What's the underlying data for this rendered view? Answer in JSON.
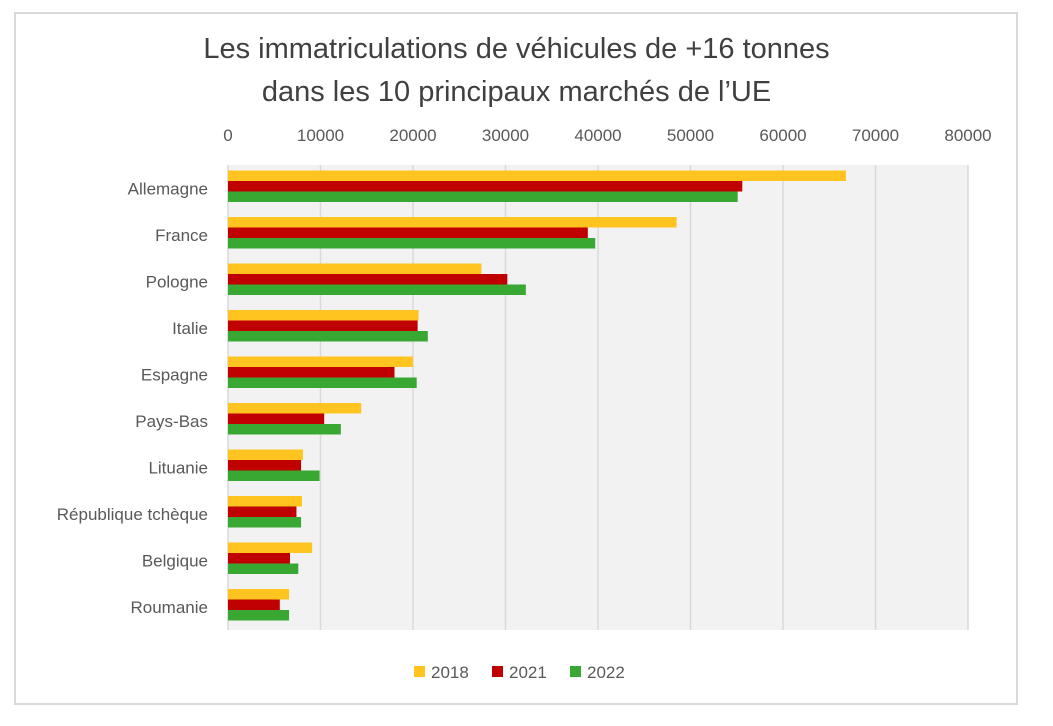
{
  "chart_data": {
    "type": "bar",
    "orientation": "horizontal",
    "title_lines": [
      "Les immatriculations de véhicules de +16 tonnes",
      "dans les 10 principaux marchés de l’UE"
    ],
    "categories": [
      "Allemagne",
      "France",
      "Pologne",
      "Italie",
      "Espagne",
      "Pays-Bas",
      "Lituanie",
      "République tchèque",
      "Belgique",
      "Roumanie"
    ],
    "series": [
      {
        "name": "2018",
        "color": "#FFC41F",
        "values": [
          66800,
          48500,
          27400,
          20600,
          20000,
          14400,
          8100,
          8000,
          9100,
          6600
        ]
      },
      {
        "name": "2021",
        "color": "#C00000",
        "values": [
          55600,
          38900,
          30200,
          20500,
          18000,
          10400,
          7900,
          7400,
          6700,
          5600
        ]
      },
      {
        "name": "2022",
        "color": "#38A832",
        "values": [
          55100,
          39700,
          32200,
          21600,
          20400,
          12200,
          9900,
          7900,
          7600,
          6600
        ]
      }
    ],
    "xlim": [
      0,
      80000
    ],
    "xticks": [
      "0",
      "10000",
      "20000",
      "30000",
      "40000",
      "50000",
      "60000",
      "70000",
      "80000"
    ],
    "xaxis_position": "top",
    "grid": true,
    "legend_position": "bottom",
    "xlabel": "",
    "ylabel": ""
  }
}
